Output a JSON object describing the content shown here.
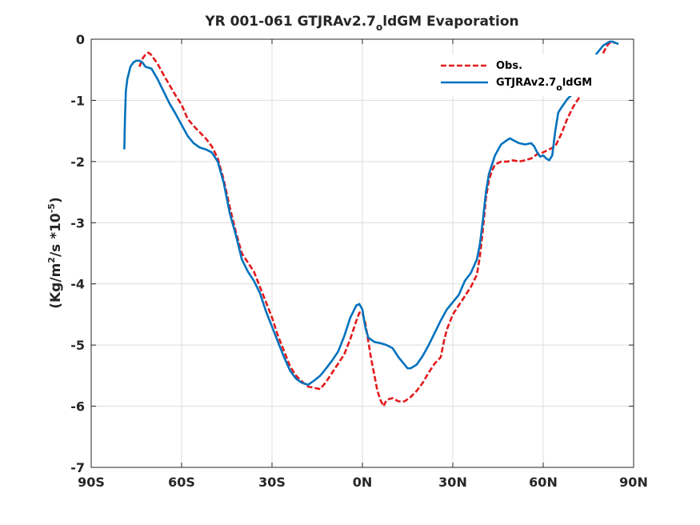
{
  "chart_data": {
    "type": "line",
    "title_main": "YR 001-061 GTJRAv2.7",
    "title_sub": "o",
    "title_end": "ldGM Evaporation",
    "ylabel_prefix": "(Kg/m",
    "ylabel_exp1": "2",
    "ylabel_mid": "/s *10",
    "ylabel_exp2": "-5",
    "ylabel_suffix": ")",
    "xlim": [
      -90,
      90
    ],
    "ylim": [
      -7,
      0
    ],
    "xticks": [
      -90,
      -60,
      -30,
      0,
      30,
      60,
      90
    ],
    "xticklabels": [
      "90S",
      "60S",
      "30S",
      "0N",
      "30N",
      "60N",
      "90N"
    ],
    "yticks": [
      0,
      -1,
      -2,
      -3,
      -4,
      -5,
      -6,
      -7
    ],
    "yticklabels": [
      "0",
      "-1",
      "-2",
      "-3",
      "-4",
      "-5",
      "-6",
      "-7"
    ],
    "grid": true,
    "legend_position": "top-right",
    "series": [
      {
        "name": "Obs.",
        "color": "#e31a1c",
        "dash": "dashed",
        "points": [
          [
            -74,
            -0.45
          ],
          [
            -73,
            -0.32
          ],
          [
            -72,
            -0.25
          ],
          [
            -71,
            -0.22
          ],
          [
            -70,
            -0.26
          ],
          [
            -68,
            -0.4
          ],
          [
            -66,
            -0.58
          ],
          [
            -64,
            -0.75
          ],
          [
            -62,
            -0.92
          ],
          [
            -60,
            -1.07
          ],
          [
            -58,
            -1.3
          ],
          [
            -56,
            -1.42
          ],
          [
            -54,
            -1.52
          ],
          [
            -52,
            -1.62
          ],
          [
            -50,
            -1.75
          ],
          [
            -48,
            -1.95
          ],
          [
            -46,
            -2.3
          ],
          [
            -44,
            -2.75
          ],
          [
            -42,
            -3.15
          ],
          [
            -40,
            -3.5
          ],
          [
            -38,
            -3.65
          ],
          [
            -36,
            -3.8
          ],
          [
            -34,
            -4.05
          ],
          [
            -32,
            -4.3
          ],
          [
            -30,
            -4.55
          ],
          [
            -28,
            -4.85
          ],
          [
            -26,
            -5.1
          ],
          [
            -24,
            -5.35
          ],
          [
            -22,
            -5.5
          ],
          [
            -20,
            -5.6
          ],
          [
            -18,
            -5.68
          ],
          [
            -16,
            -5.7
          ],
          [
            -14,
            -5.72
          ],
          [
            -12,
            -5.6
          ],
          [
            -10,
            -5.45
          ],
          [
            -8,
            -5.3
          ],
          [
            -6,
            -5.15
          ],
          [
            -4,
            -4.9
          ],
          [
            -2,
            -4.6
          ],
          [
            -1,
            -4.47
          ],
          [
            0,
            -4.47
          ],
          [
            1,
            -4.65
          ],
          [
            2,
            -4.95
          ],
          [
            3,
            -5.25
          ],
          [
            4,
            -5.5
          ],
          [
            5,
            -5.75
          ],
          [
            6,
            -5.9
          ],
          [
            7,
            -6.0
          ],
          [
            8,
            -5.9
          ],
          [
            9,
            -5.88
          ],
          [
            10,
            -5.87
          ],
          [
            12,
            -5.92
          ],
          [
            14,
            -5.92
          ],
          [
            16,
            -5.85
          ],
          [
            18,
            -5.75
          ],
          [
            20,
            -5.62
          ],
          [
            22,
            -5.45
          ],
          [
            24,
            -5.3
          ],
          [
            26,
            -5.2
          ],
          [
            27,
            -4.95
          ],
          [
            28,
            -4.75
          ],
          [
            30,
            -4.5
          ],
          [
            32,
            -4.35
          ],
          [
            34,
            -4.2
          ],
          [
            36,
            -4.05
          ],
          [
            38,
            -3.85
          ],
          [
            39,
            -3.55
          ],
          [
            40,
            -3.1
          ],
          [
            41,
            -2.6
          ],
          [
            42,
            -2.3
          ],
          [
            43,
            -2.15
          ],
          [
            44,
            -2.05
          ],
          [
            46,
            -2.0
          ],
          [
            48,
            -2.0
          ],
          [
            50,
            -1.98
          ],
          [
            52,
            -2.0
          ],
          [
            54,
            -1.98
          ],
          [
            56,
            -1.95
          ],
          [
            58,
            -1.88
          ],
          [
            60,
            -1.85
          ],
          [
            62,
            -1.8
          ],
          [
            64,
            -1.75
          ],
          [
            66,
            -1.55
          ],
          [
            68,
            -1.3
          ],
          [
            70,
            -1.1
          ],
          [
            72,
            -0.95
          ],
          [
            74,
            -0.82
          ],
          [
            76,
            -0.58
          ],
          [
            78,
            -0.38
          ],
          [
            80,
            -0.22
          ],
          [
            81,
            -0.12
          ],
          [
            82,
            -0.06
          ],
          [
            83,
            -0.05
          ],
          [
            84,
            -0.06
          ]
        ]
      },
      {
        "name": "GTJRAv2.7_oldGM",
        "label_pre": "GTJRAv2.7",
        "label_sub": "o",
        "label_post": "ldGM",
        "color": "#0072bd",
        "dash": "solid",
        "points": [
          [
            -79,
            -1.8
          ],
          [
            -78.8,
            -1.3
          ],
          [
            -78.5,
            -0.85
          ],
          [
            -78,
            -0.65
          ],
          [
            -77,
            -0.45
          ],
          [
            -76,
            -0.38
          ],
          [
            -75,
            -0.35
          ],
          [
            -74,
            -0.35
          ],
          [
            -73,
            -0.38
          ],
          [
            -72,
            -0.45
          ],
          [
            -70,
            -0.48
          ],
          [
            -68,
            -0.65
          ],
          [
            -66,
            -0.85
          ],
          [
            -64,
            -1.05
          ],
          [
            -62,
            -1.22
          ],
          [
            -60,
            -1.4
          ],
          [
            -58,
            -1.58
          ],
          [
            -56,
            -1.7
          ],
          [
            -54,
            -1.77
          ],
          [
            -52,
            -1.8
          ],
          [
            -50,
            -1.85
          ],
          [
            -48,
            -2.0
          ],
          [
            -46,
            -2.35
          ],
          [
            -44,
            -2.85
          ],
          [
            -42,
            -3.2
          ],
          [
            -40,
            -3.6
          ],
          [
            -38,
            -3.8
          ],
          [
            -36,
            -3.95
          ],
          [
            -34,
            -4.15
          ],
          [
            -32,
            -4.45
          ],
          [
            -30,
            -4.7
          ],
          [
            -28,
            -4.95
          ],
          [
            -26,
            -5.2
          ],
          [
            -24,
            -5.42
          ],
          [
            -22,
            -5.55
          ],
          [
            -20,
            -5.62
          ],
          [
            -18,
            -5.65
          ],
          [
            -16,
            -5.58
          ],
          [
            -14,
            -5.5
          ],
          [
            -12,
            -5.38
          ],
          [
            -10,
            -5.25
          ],
          [
            -8,
            -5.1
          ],
          [
            -6,
            -4.85
          ],
          [
            -4,
            -4.55
          ],
          [
            -2,
            -4.35
          ],
          [
            -1,
            -4.33
          ],
          [
            0,
            -4.42
          ],
          [
            1,
            -4.72
          ],
          [
            2,
            -4.88
          ],
          [
            4,
            -4.95
          ],
          [
            6,
            -4.97
          ],
          [
            8,
            -5.0
          ],
          [
            10,
            -5.05
          ],
          [
            12,
            -5.2
          ],
          [
            14,
            -5.32
          ],
          [
            15,
            -5.38
          ],
          [
            16,
            -5.38
          ],
          [
            18,
            -5.32
          ],
          [
            20,
            -5.18
          ],
          [
            22,
            -5.0
          ],
          [
            24,
            -4.8
          ],
          [
            26,
            -4.6
          ],
          [
            28,
            -4.42
          ],
          [
            30,
            -4.3
          ],
          [
            32,
            -4.18
          ],
          [
            34,
            -3.95
          ],
          [
            36,
            -3.82
          ],
          [
            38,
            -3.6
          ],
          [
            39,
            -3.35
          ],
          [
            40,
            -2.95
          ],
          [
            41,
            -2.5
          ],
          [
            42,
            -2.2
          ],
          [
            43,
            -2.05
          ],
          [
            44,
            -1.9
          ],
          [
            46,
            -1.72
          ],
          [
            48,
            -1.65
          ],
          [
            49,
            -1.62
          ],
          [
            50,
            -1.65
          ],
          [
            52,
            -1.7
          ],
          [
            54,
            -1.72
          ],
          [
            56,
            -1.7
          ],
          [
            57,
            -1.75
          ],
          [
            58,
            -1.85
          ],
          [
            59,
            -1.92
          ],
          [
            60,
            -1.9
          ],
          [
            61,
            -1.95
          ],
          [
            62,
            -1.98
          ],
          [
            63,
            -1.9
          ],
          [
            64,
            -1.5
          ],
          [
            65,
            -1.2
          ],
          [
            66,
            -1.12
          ],
          [
            68,
            -0.98
          ],
          [
            70,
            -0.88
          ],
          [
            72,
            -0.7
          ],
          [
            74,
            -0.52
          ],
          [
            76,
            -0.35
          ],
          [
            78,
            -0.22
          ],
          [
            80,
            -0.1
          ],
          [
            82,
            -0.04
          ],
          [
            83,
            -0.04
          ],
          [
            84,
            -0.06
          ],
          [
            85,
            -0.08
          ]
        ]
      }
    ]
  }
}
